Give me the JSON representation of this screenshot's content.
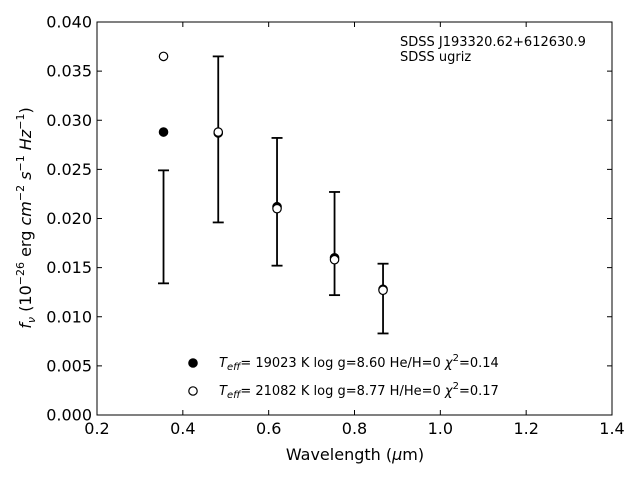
{
  "chart_data": {
    "type": "scatter",
    "title": "",
    "xlabel_main": "Wavelength (",
    "xlabel_mu": "μ",
    "xlabel_unit": "m)",
    "ylabel_main": "f",
    "ylabel_sub": "ν",
    "ylabel_pre": " (10",
    "ylabel_exp1": "−26",
    "ylabel_mid": " erg ",
    "ylabel_cm": "cm",
    "ylabel_exp2": "−2",
    "ylabel_s": " s",
    "ylabel_exp3": "−1",
    "ylabel_hz": " Hz",
    "ylabel_exp4": "−1",
    "ylabel_close": ")",
    "xlim": [
      0.2,
      1.4
    ],
    "ylim": [
      0.0,
      0.04
    ],
    "xticks": [
      "0.2",
      "0.4",
      "0.6",
      "0.8",
      "1.0",
      "1.2",
      "1.4"
    ],
    "yticks": [
      "0.000",
      "0.005",
      "0.010",
      "0.015",
      "0.020",
      "0.025",
      "0.030",
      "0.035",
      "0.040"
    ],
    "annotation_line1": "SDSS J193320.62+612630.9",
    "annotation_line2": "SDSS ugriz",
    "observed": {
      "x": [
        0.354,
        0.477,
        0.6222,
        0.7632,
        0.9049
      ],
      "y": [
        0.0192,
        0.028,
        0.0217,
        0.0175,
        0.0118
      ],
      "yerr_low": [
        0.0058,
        0.0084,
        0.0065,
        0.0052,
        0.0035
      ],
      "yerr_high": [
        0.0058,
        0.0084,
        0.0065,
        0.0052,
        0.0035
      ]
    },
    "observed_plot_x": [
      0.355,
      0.4825,
      0.6195,
      0.7535,
      0.8665
    ],
    "observed_bars": [
      {
        "x": 0.355,
        "low": 0.0134,
        "high": 0.0249
      },
      {
        "x": 0.4825,
        "low": 0.0196,
        "high": 0.0365
      },
      {
        "x": 0.6195,
        "low": 0.0152,
        "high": 0.0282
      },
      {
        "x": 0.7535,
        "low": 0.0122,
        "high": 0.0227
      },
      {
        "x": 0.8665,
        "low": 0.0083,
        "high": 0.0154
      }
    ],
    "series": [
      {
        "name": "T_eff= 19023 K log g=8.60 He/H=0 χ2=0.14",
        "marker": "filled",
        "x": [
          0.355,
          0.4825,
          0.6195,
          0.7535,
          0.8665
        ],
        "y": [
          0.0288,
          0.0287,
          0.0212,
          0.016,
          0.0128
        ]
      },
      {
        "name": "T_eff= 21082 K log g=8.77 H/He=0 χ2=0.17",
        "marker": "open",
        "x": [
          0.355,
          0.4825,
          0.6195,
          0.7535,
          0.8665
        ],
        "y": [
          0.0365,
          0.0288,
          0.021,
          0.0158,
          0.0127
        ]
      }
    ],
    "legend": [
      {
        "marker": "filled",
        "t": "T",
        "sub": "eff",
        "rest1": "= 19023 K  log g=8.60  He/H=0  ",
        "chi": "χ",
        "sup": "2",
        "rest2": "=0.14"
      },
      {
        "marker": "open",
        "t": "T",
        "sub": "eff",
        "rest1": "= 21082 K  log g=8.77  H/He=0  ",
        "chi": "χ",
        "sup": "2",
        "rest2": "=0.17"
      }
    ],
    "legend_position": "lower-center",
    "grid": false
  }
}
